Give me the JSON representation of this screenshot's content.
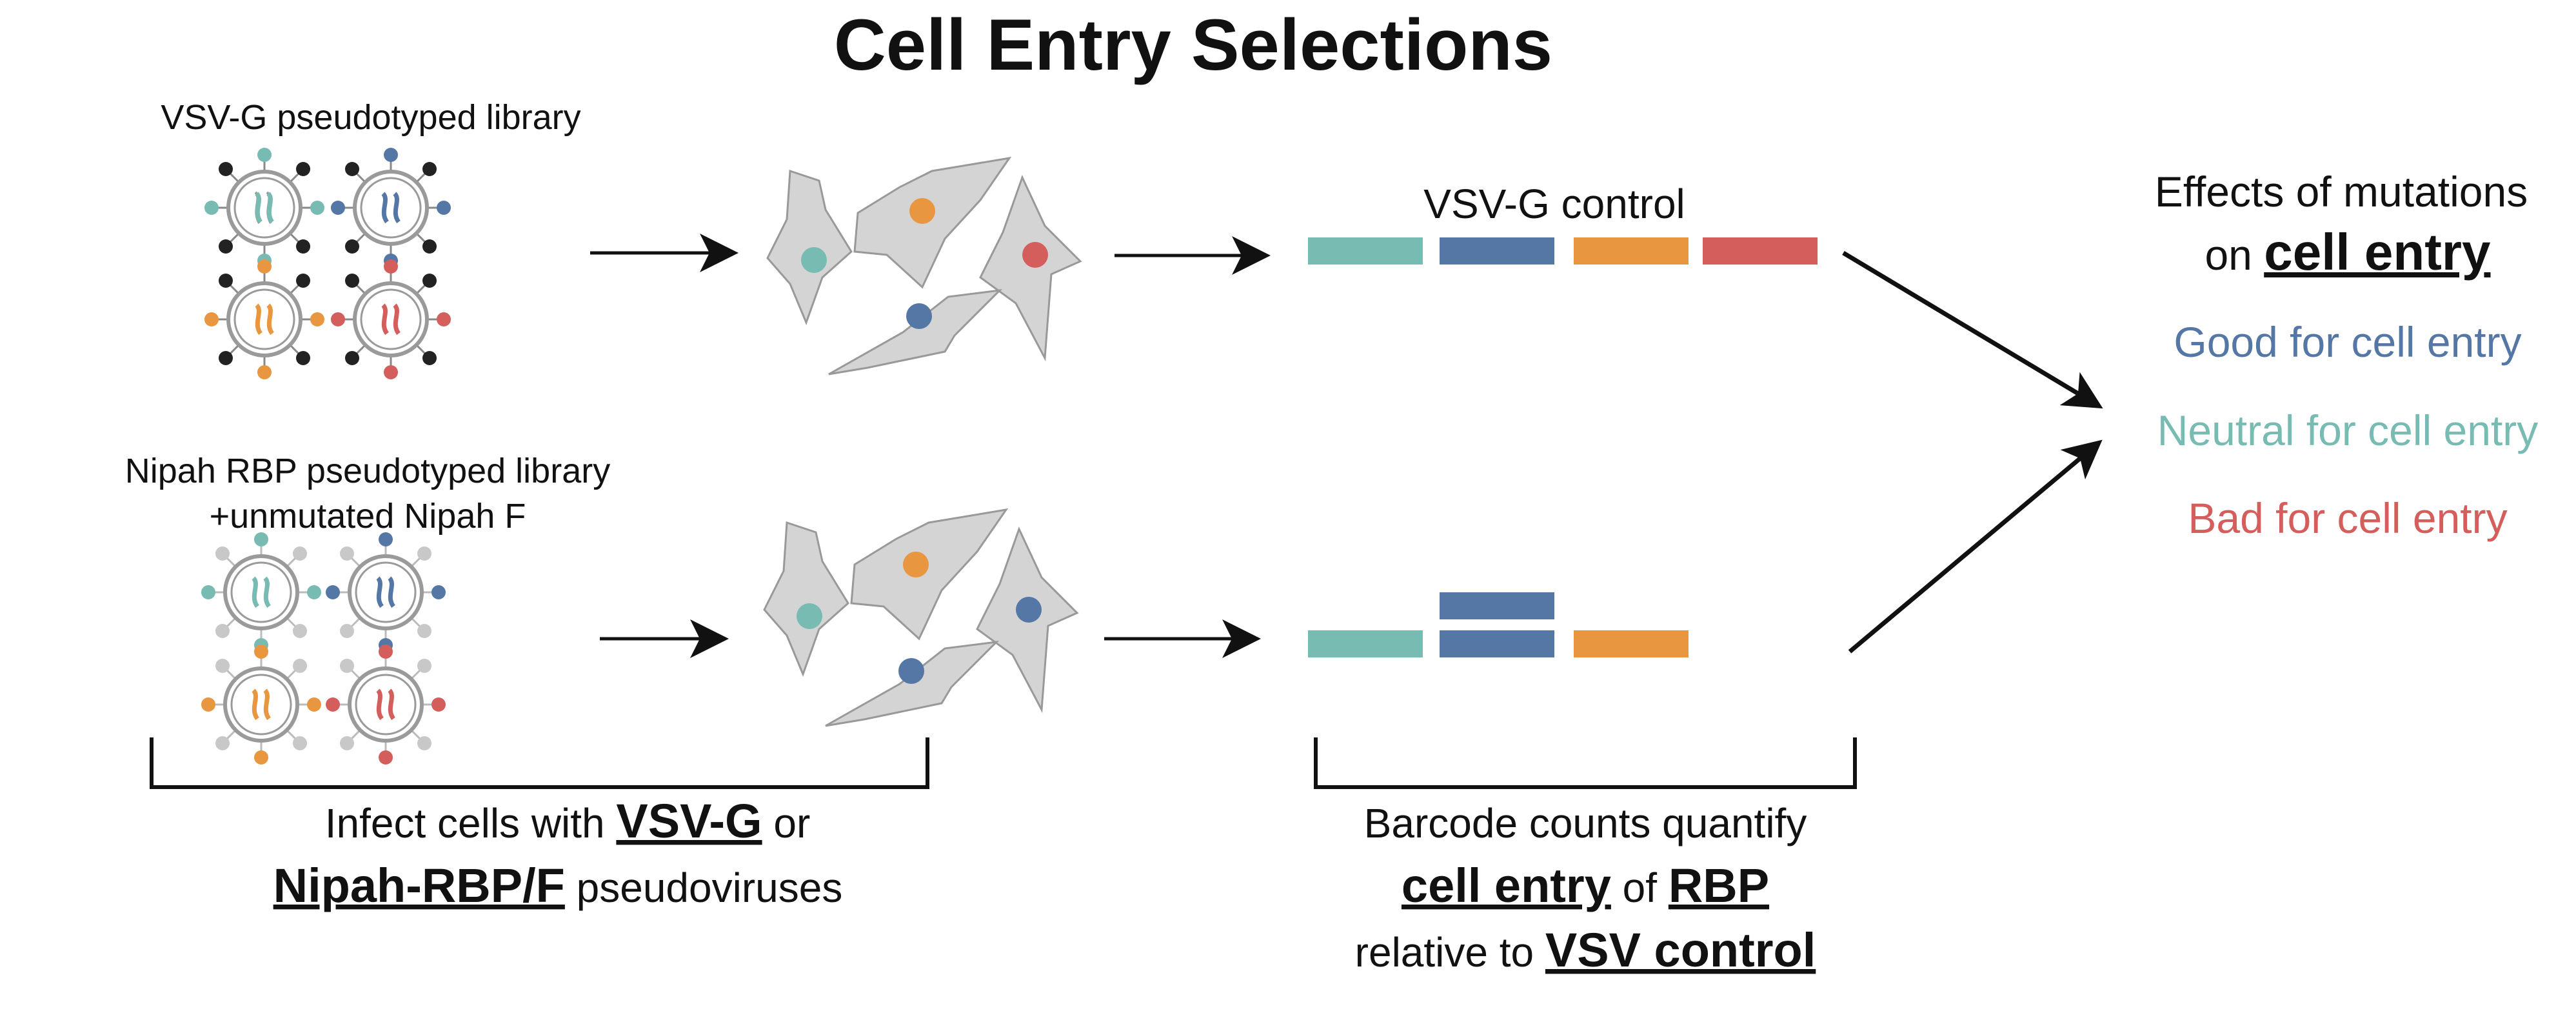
{
  "title": "Cell Entry Selections",
  "top_library": {
    "label": "VSV-G pseudotyped library"
  },
  "bottom_library": {
    "label_line1": "Nipah RBP pseudotyped library",
    "label_line2": "+unmutated Nipah F"
  },
  "control_label": "VSV-G control",
  "infect_caption": {
    "pre": "Infect cells with ",
    "bold1": "VSV-G",
    "mid": " or",
    "bold2": "Nipah-RBP/F",
    "post": " pseudoviruses"
  },
  "barcode_caption": {
    "line1": "Barcode counts quantify",
    "bold1": "cell entry",
    "mid": " of ",
    "bold2": "RBP",
    "pre3": "relative to ",
    "bold3": "VSV control"
  },
  "effects": {
    "line1": "Effects of mutations",
    "line2_pre": "on ",
    "line2_bold": "cell entry",
    "good": "Good for cell entry",
    "neutral": "Neutral for cell entry",
    "bad": "Bad for cell entry"
  },
  "colors": {
    "teal": "#77bbb2",
    "blue": "#5577a6",
    "orange": "#e8963f",
    "red": "#d45e5c",
    "cell": "#d4d4d4",
    "black_spike": "#222222",
    "gray_spike": "#c8c8c8"
  }
}
